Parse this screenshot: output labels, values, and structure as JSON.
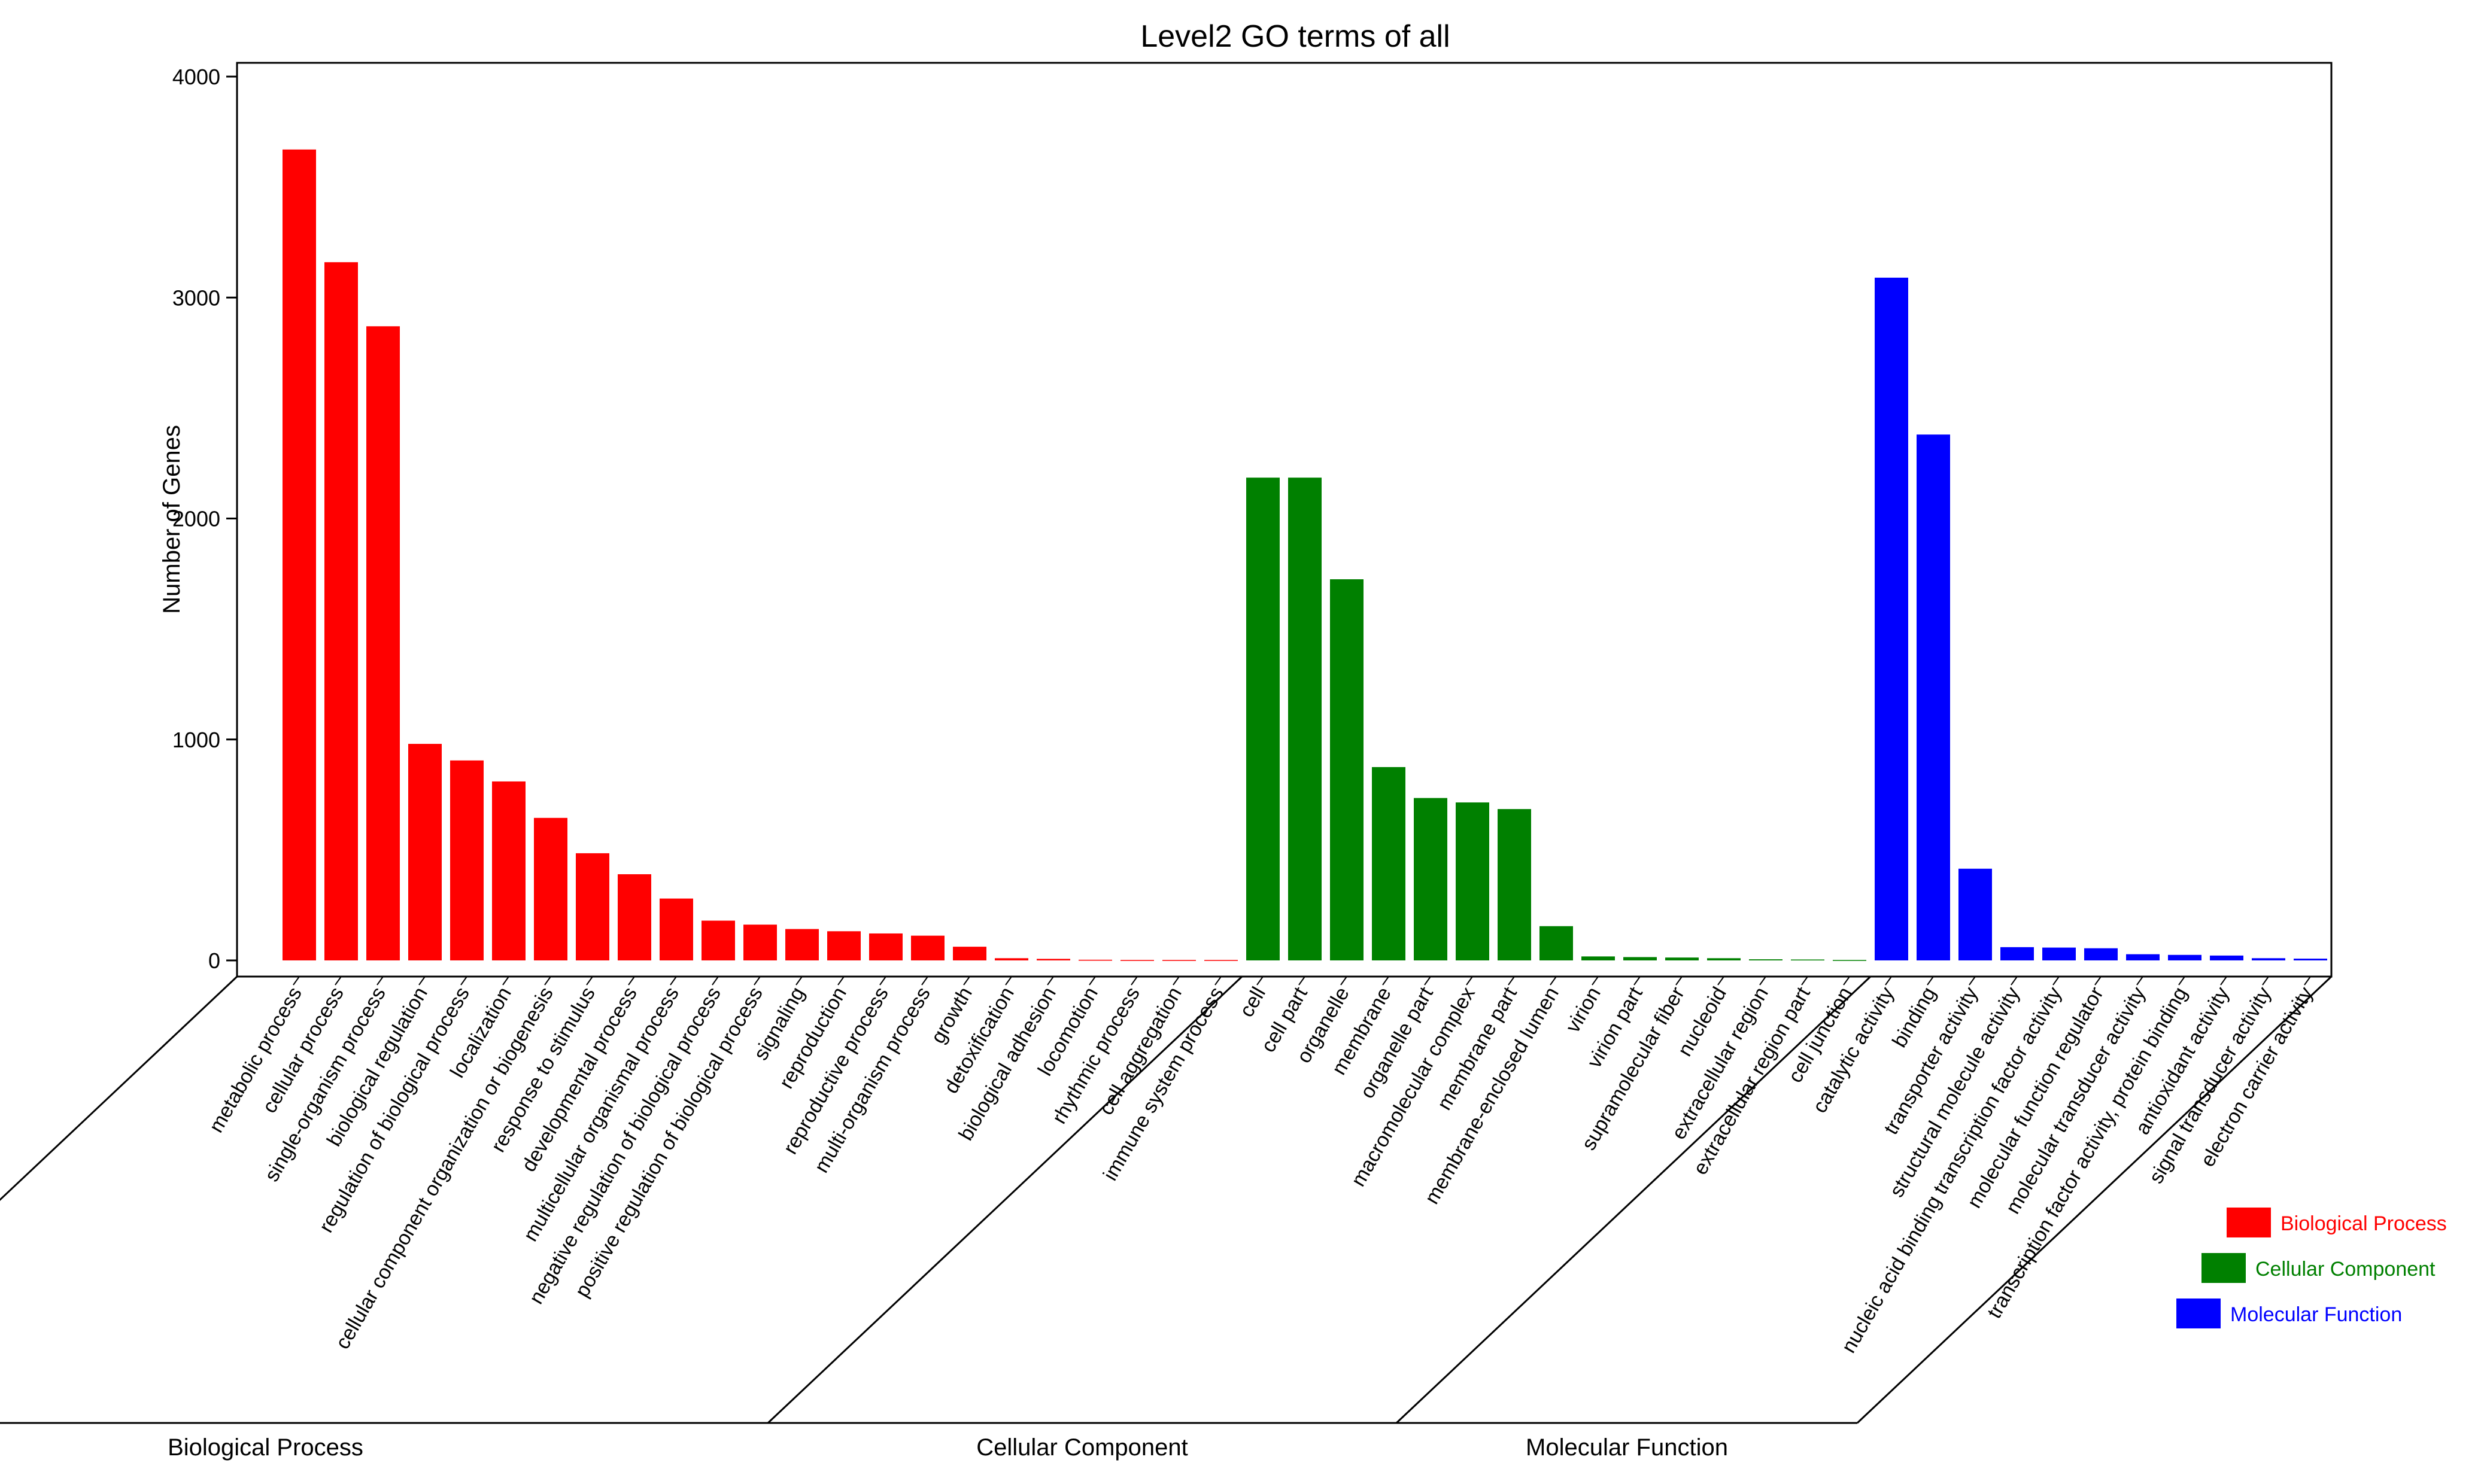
{
  "chart_data": {
    "type": "bar",
    "title": "Level2 GO terms of all",
    "ylabel": "Number of Genes",
    "ylim": [
      0,
      4000
    ],
    "yticks": [
      0,
      1000,
      2000,
      3000,
      4000
    ],
    "grid": false,
    "legend_position": "right",
    "groups": [
      {
        "name": "Biological Process",
        "color": "#ff0000",
        "categories": [
          "metabolic process",
          "cellular process",
          "single-organism process",
          "biological regulation",
          "regulation of biological process",
          "localization",
          "cellular component organization or biogenesis",
          "response to stimulus",
          "developmental process",
          "multicellular organismal process",
          "negative regulation of biological process",
          "positive regulation of biological process",
          "signaling",
          "reproduction",
          "reproductive process",
          "multi-organism process",
          "growth",
          "detoxification",
          "biological adhesion",
          "locomotion",
          "rhythmic process",
          "cell aggregation",
          "immune system process"
        ],
        "values": [
          3670,
          3160,
          2870,
          980,
          905,
          810,
          645,
          485,
          390,
          280,
          180,
          162,
          142,
          132,
          122,
          112,
          62,
          10,
          7,
          3,
          2,
          2,
          2
        ]
      },
      {
        "name": "Cellular Component",
        "color": "#008000",
        "categories": [
          "cell",
          "cell part",
          "organelle",
          "membrane",
          "organelle part",
          "macromolecular complex",
          "membrane part",
          "membrane-enclosed lumen",
          "virion",
          "virion part",
          "supramolecular fiber",
          "nucleoid",
          "extracellular region",
          "extracellular region part",
          "cell junction"
        ],
        "values": [
          2185,
          2185,
          1725,
          875,
          735,
          715,
          685,
          155,
          18,
          15,
          13,
          10,
          5,
          4,
          2
        ]
      },
      {
        "name": "Molecular Function",
        "color": "#0000ff",
        "categories": [
          "catalytic activity",
          "binding",
          "transporter activity",
          "structural molecule activity",
          "nucleic acid binding transcription factor activity",
          "molecular function regulator",
          "molecular transducer activity",
          "transcription factor activity, protein binding",
          "antioxidant activity",
          "signal transducer activity",
          "electron carrier activity"
        ],
        "values": [
          3090,
          2380,
          415,
          60,
          58,
          55,
          28,
          25,
          22,
          10,
          8
        ]
      }
    ]
  }
}
